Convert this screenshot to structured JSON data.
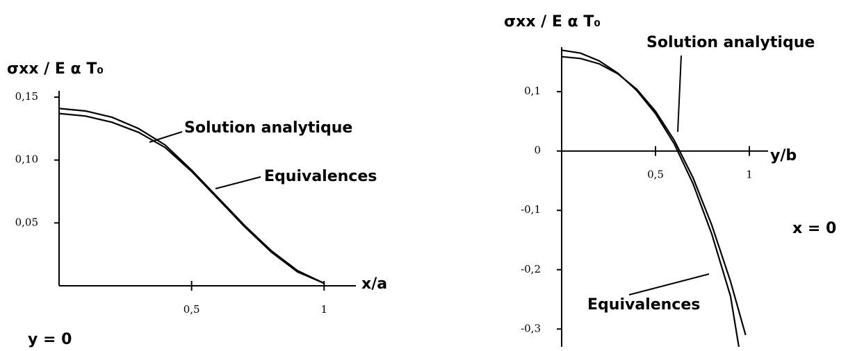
{
  "chart_data": [
    {
      "type": "line",
      "y_label": "σxx / E α T₀",
      "x_label": "x/a",
      "annotation": "y = 0",
      "xlim": [
        0,
        1.12
      ],
      "ylim": [
        0,
        0.155
      ],
      "xticks": [
        {
          "value": 0.5,
          "label": "0,5"
        },
        1
      ],
      "yticks": [
        {
          "value": 0.05,
          "label": "0,05"
        },
        {
          "value": 0.1,
          "label": "0,10"
        },
        {
          "value": 0.15,
          "label": "0,15"
        }
      ],
      "series": [
        {
          "name": "Solution analytique",
          "color": "#000000",
          "x": [
            0,
            0.1,
            0.2,
            0.3,
            0.4,
            0.5,
            0.6,
            0.7,
            0.8,
            0.9,
            1
          ],
          "values": [
            0.141,
            0.139,
            0.134,
            0.125,
            0.112,
            0.092,
            0.07,
            0.048,
            0.028,
            0.012,
            0.002
          ]
        },
        {
          "name": "Equivalences",
          "color": "#000000",
          "x": [
            0,
            0.1,
            0.2,
            0.3,
            0.4,
            0.5,
            0.6,
            0.7,
            0.8,
            0.9,
            1
          ],
          "values": [
            0.137,
            0.135,
            0.13,
            0.122,
            0.11,
            0.091,
            0.069,
            0.047,
            0.027,
            0.011,
            0.002
          ]
        }
      ]
    },
    {
      "type": "line",
      "y_label": "σxx / E α T₀",
      "x_label": "y/b",
      "annotation": "x = 0",
      "xlim": [
        0,
        1.1
      ],
      "ylim": [
        -0.33,
        0.175
      ],
      "xticks": [
        {
          "value": 0.5,
          "label": "0,5"
        },
        1
      ],
      "yticks": [
        {
          "value": 0.1,
          "label": "0,1"
        },
        0,
        {
          "value": -0.1,
          "label": "-0,1"
        },
        {
          "value": -0.2,
          "label": "-0,2"
        },
        {
          "value": -0.3,
          "label": "-0,3"
        }
      ],
      "series": [
        {
          "name": "Solution analytique",
          "color": "#000000",
          "x": [
            0,
            0.1,
            0.2,
            0.3,
            0.4,
            0.5,
            0.6,
            0.7,
            0.8,
            0.9,
            0.98
          ],
          "values": [
            0.159,
            0.156,
            0.147,
            0.13,
            0.104,
            0.067,
            0.018,
            -0.045,
            -0.125,
            -0.22,
            -0.31
          ]
        },
        {
          "name": "Equivalences",
          "color": "#000000",
          "x": [
            0,
            0.1,
            0.2,
            0.3,
            0.4,
            0.5,
            0.6,
            0.7,
            0.8,
            0.9,
            0.944
          ],
          "values": [
            0.17,
            0.165,
            0.152,
            0.131,
            0.102,
            0.063,
            0.012,
            -0.055,
            -0.14,
            -0.245,
            -0.33
          ]
        }
      ]
    }
  ]
}
